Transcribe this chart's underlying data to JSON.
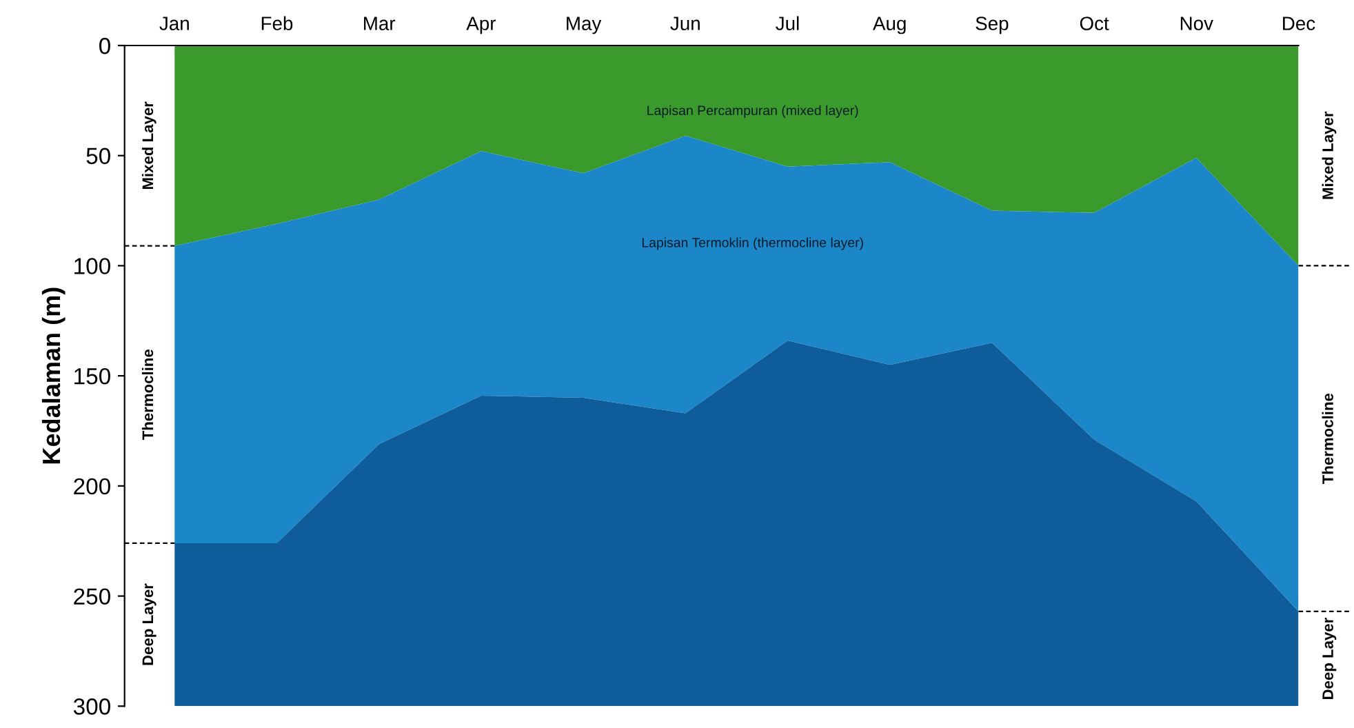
{
  "chart_data": {
    "type": "area",
    "stacked": true,
    "ylabel": "Kedalaman (m)",
    "categories": [
      "Jan",
      "Feb",
      "Mar",
      "Apr",
      "May",
      "Jun",
      "Jul",
      "Aug",
      "Sep",
      "Oct",
      "Nov",
      "Dec"
    ],
    "series": [
      {
        "name": "Mixed Layer",
        "color": "#3a9a2c",
        "values": [
          91,
          81,
          70,
          48,
          58,
          41,
          55,
          53,
          75,
          76,
          51,
          100
        ]
      },
      {
        "name": "Thermocline",
        "color": "#1b87c9",
        "values": [
          135,
          145,
          111,
          111,
          102,
          126,
          79,
          92,
          60,
          103,
          156,
          157
        ]
      },
      {
        "name": "Deep Layer",
        "color": "#0e5d9a",
        "values": [
          74,
          74,
          119,
          141,
          140,
          133,
          166,
          155,
          165,
          121,
          93,
          43
        ]
      }
    ],
    "annotations": [
      "Lapisan Percampuran (mixed layer)",
      "Lapisan Termoklin (thermocline layer)"
    ],
    "ylim": [
      300,
      0
    ],
    "yticks": [
      0,
      50,
      100,
      150,
      200,
      250,
      300
    ],
    "grid": false,
    "legend": false
  }
}
